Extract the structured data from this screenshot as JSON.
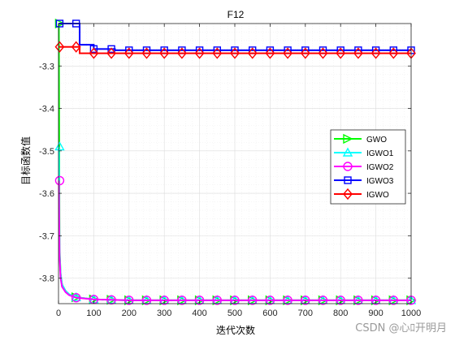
{
  "chart_data": {
    "type": "line",
    "title": "F12",
    "xlabel": "迭代次数",
    "ylabel": "目标函数值",
    "xlim": [
      0,
      1000
    ],
    "ylim": [
      -3.86,
      -3.2
    ],
    "xticks": [
      0,
      100,
      200,
      300,
      400,
      500,
      600,
      700,
      800,
      900,
      1000
    ],
    "yticks": [
      -3.8,
      -3.7,
      -3.6,
      -3.5,
      -3.4,
      -3.3
    ],
    "ytick_labels": [
      "-3.8",
      "-3.7",
      "-3.6",
      "-3.5",
      "-3.4",
      "-3.3"
    ],
    "grid": true,
    "minor_grid": true,
    "legend_position": "right",
    "series": [
      {
        "name": "GWO",
        "color": "#00ff00",
        "marker": "triangle-right",
        "x": [
          1,
          3,
          6,
          10,
          20,
          30,
          50,
          100,
          200,
          1000
        ],
        "y": [
          -3.2,
          -3.73,
          -3.79,
          -3.815,
          -3.83,
          -3.838,
          -3.845,
          -3.85,
          -3.852,
          -3.852
        ]
      },
      {
        "name": "IGWO1",
        "color": "#00ffff",
        "marker": "triangle-up",
        "x": [
          1,
          3,
          6,
          10,
          20,
          30,
          50,
          100,
          200,
          1000
        ],
        "y": [
          -3.49,
          -3.74,
          -3.79,
          -3.815,
          -3.83,
          -3.838,
          -3.845,
          -3.85,
          -3.852,
          -3.852
        ]
      },
      {
        "name": "IGWO2",
        "color": "#ff00ff",
        "marker": "circle",
        "x": [
          1,
          3,
          6,
          10,
          20,
          30,
          50,
          100,
          200,
          1000
        ],
        "y": [
          -3.57,
          -3.75,
          -3.8,
          -3.82,
          -3.833,
          -3.84,
          -3.846,
          -3.85,
          -3.852,
          -3.852
        ]
      },
      {
        "name": "IGWO3",
        "color": "#0000ff",
        "marker": "square",
        "step": true,
        "x": [
          1,
          50,
          60,
          100,
          150,
          160,
          1000
        ],
        "y": [
          -3.2,
          -3.2,
          -3.25,
          -3.26,
          -3.26,
          -3.263,
          -3.263
        ]
      },
      {
        "name": "IGWO",
        "color": "#ff0000",
        "marker": "diamond",
        "step": true,
        "x": [
          1,
          45,
          60,
          100,
          1000
        ],
        "y": [
          -3.255,
          -3.255,
          -3.27,
          -3.27,
          -3.27
        ]
      }
    ],
    "markers_x": [
      1,
      50,
      100,
      150,
      200,
      250,
      300,
      350,
      400,
      450,
      500,
      550,
      600,
      650,
      700,
      750,
      800,
      850,
      900,
      950,
      1000
    ]
  },
  "watermark": "CSDN @心ﾛ开明月"
}
